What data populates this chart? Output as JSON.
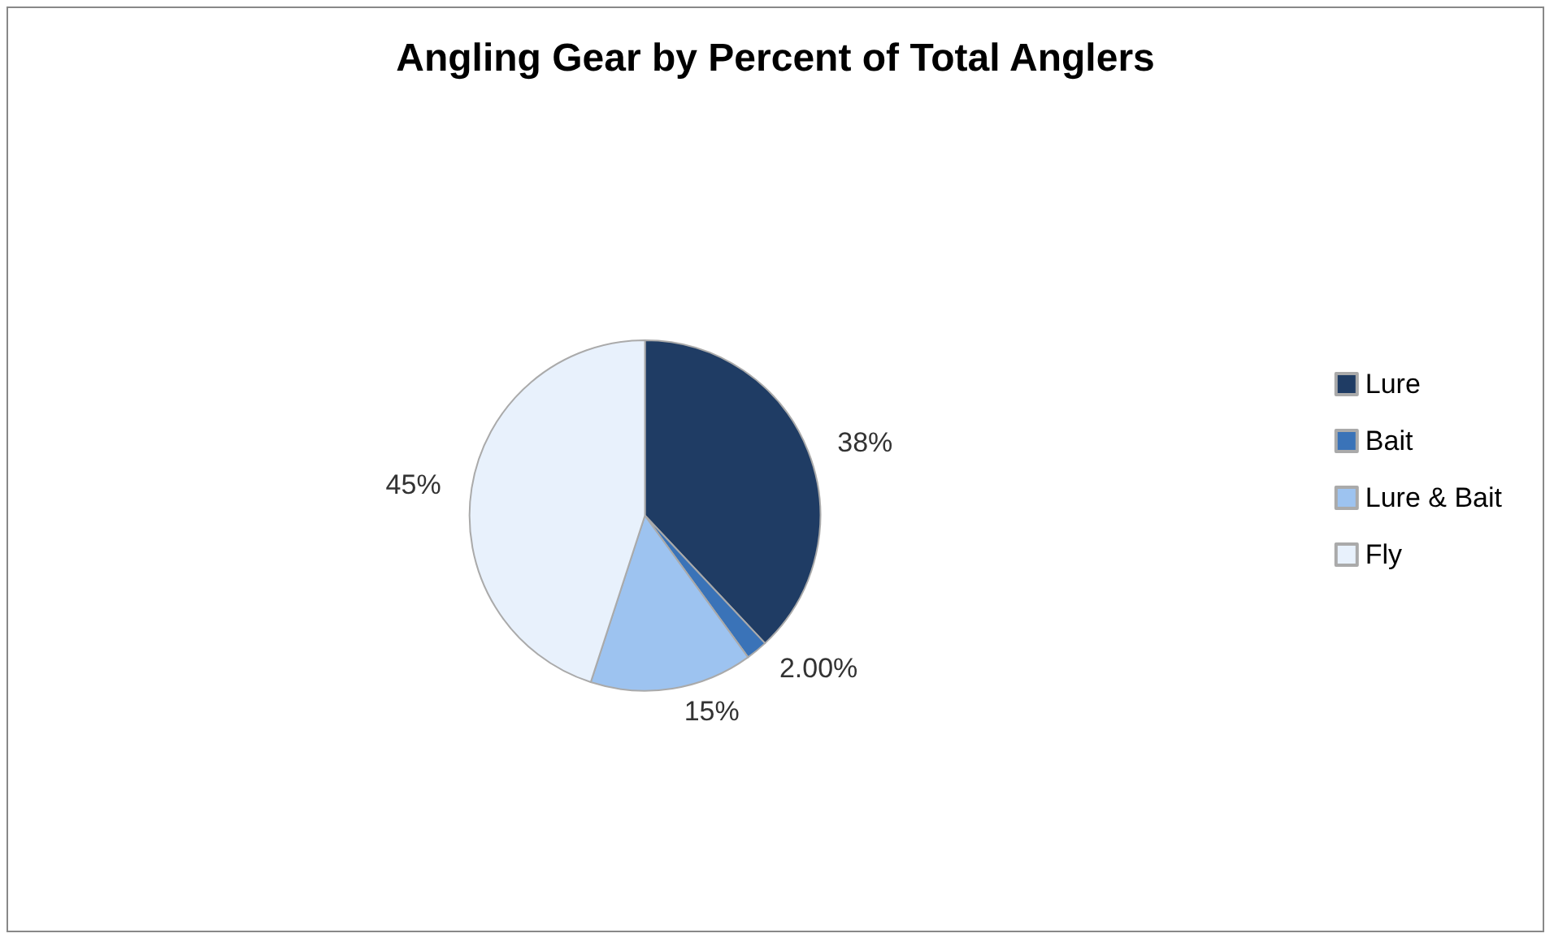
{
  "chart_data": {
    "type": "pie",
    "title": "Angling Gear by Percent of Total Anglers",
    "categories": [
      "Lure",
      "Bait",
      "Lure & Bait",
      "Fly"
    ],
    "values": [
      38,
      2,
      15,
      45
    ],
    "value_labels": [
      "38%",
      "2.00%",
      "15%",
      "45%"
    ],
    "colors": [
      "#1f3c64",
      "#3a73b8",
      "#9dc3f0",
      "#e8f1fc"
    ],
    "legend": "right"
  }
}
